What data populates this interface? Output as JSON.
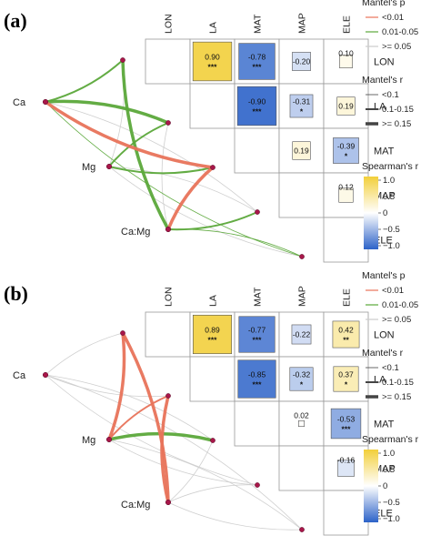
{
  "chart_data": [
    {
      "panel": "(a)",
      "type": "heatmap",
      "variables": [
        "LON",
        "LA",
        "MAT",
        "MAP",
        "ELE"
      ],
      "cells": [
        {
          "row": "LON",
          "col": "LA",
          "r": 0.9,
          "sig": "***"
        },
        {
          "row": "LON",
          "col": "MAT",
          "r": -0.78,
          "sig": "***"
        },
        {
          "row": "LON",
          "col": "MAP",
          "r": -0.2,
          "sig": ""
        },
        {
          "row": "LON",
          "col": "ELE",
          "r": 0.1,
          "sig": ""
        },
        {
          "row": "LA",
          "col": "MAT",
          "r": -0.9,
          "sig": "***"
        },
        {
          "row": "LA",
          "col": "MAP",
          "r": -0.31,
          "sig": "*"
        },
        {
          "row": "LA",
          "col": "ELE",
          "r": 0.19,
          "sig": ""
        },
        {
          "row": "MAT",
          "col": "MAP",
          "r": 0.19,
          "sig": ""
        },
        {
          "row": "MAT",
          "col": "ELE",
          "r": -0.39,
          "sig": "*"
        },
        {
          "row": "MAP",
          "col": "ELE",
          "r": 0.12,
          "sig": ""
        }
      ],
      "nodes": [
        "Ca",
        "Mg",
        "Ca:Mg"
      ],
      "links": [
        {
          "from": "Ca",
          "to": "LON",
          "p": "0.01-0.05",
          "r": "0.1-0.15"
        },
        {
          "from": "Ca",
          "to": "LA",
          "p": "0.01-0.05",
          "r": ">= 0.15"
        },
        {
          "from": "Ca",
          "to": "MAT",
          "p": "<0.01",
          "r": ">= 0.15"
        },
        {
          "from": "Ca",
          "to": "MAP",
          "p": ">= 0.05",
          "r": "<0.1"
        },
        {
          "from": "Ca",
          "to": "ELE",
          "p": "0.01-0.05",
          "r": "<0.1"
        },
        {
          "from": "Mg",
          "to": "LON",
          "p": ">= 0.05",
          "r": "<0.1"
        },
        {
          "from": "Mg",
          "to": "LA",
          "p": "0.01-0.05",
          "r": "0.1-0.15"
        },
        {
          "from": "Mg",
          "to": "MAT",
          "p": "0.01-0.05",
          "r": "0.1-0.15"
        },
        {
          "from": "Mg",
          "to": "MAP",
          "p": ">= 0.05",
          "r": "<0.1"
        },
        {
          "from": "Mg",
          "to": "ELE",
          "p": ">= 0.05",
          "r": "<0.1"
        },
        {
          "from": "Ca:Mg",
          "to": "LON",
          "p": "0.01-0.05",
          "r": ">= 0.15"
        },
        {
          "from": "Ca:Mg",
          "to": "LA",
          "p": ">= 0.05",
          "r": "<0.1"
        },
        {
          "from": "Ca:Mg",
          "to": "MAT",
          "p": "<0.01",
          "r": ">= 0.15"
        },
        {
          "from": "Ca:Mg",
          "to": "MAP",
          "p": "0.01-0.05",
          "r": "0.1-0.15"
        },
        {
          "from": "Ca:Mg",
          "to": "ELE",
          "p": "0.01-0.05",
          "r": "<0.1"
        }
      ]
    },
    {
      "panel": "(b)",
      "type": "heatmap",
      "variables": [
        "LON",
        "LA",
        "MAT",
        "MAP",
        "ELE"
      ],
      "cells": [
        {
          "row": "LON",
          "col": "LA",
          "r": 0.89,
          "sig": "***"
        },
        {
          "row": "LON",
          "col": "MAT",
          "r": -0.77,
          "sig": "***"
        },
        {
          "row": "LON",
          "col": "MAP",
          "r": -0.22,
          "sig": ""
        },
        {
          "row": "LON",
          "col": "ELE",
          "r": 0.42,
          "sig": "**"
        },
        {
          "row": "LA",
          "col": "MAT",
          "r": -0.85,
          "sig": "***"
        },
        {
          "row": "LA",
          "col": "MAP",
          "r": -0.32,
          "sig": "*"
        },
        {
          "row": "LA",
          "col": "ELE",
          "r": 0.37,
          "sig": "*"
        },
        {
          "row": "MAT",
          "col": "MAP",
          "r": 0.02,
          "sig": ""
        },
        {
          "row": "MAT",
          "col": "ELE",
          "r": -0.53,
          "sig": "***"
        },
        {
          "row": "MAP",
          "col": "ELE",
          "r": -0.16,
          "sig": ""
        }
      ],
      "nodes": [
        "Ca",
        "Mg",
        "Ca:Mg"
      ],
      "links": [
        {
          "from": "Ca",
          "to": "LON",
          "p": ">= 0.05",
          "r": "<0.1"
        },
        {
          "from": "Ca",
          "to": "LA",
          "p": ">= 0.05",
          "r": "<0.1"
        },
        {
          "from": "Ca",
          "to": "MAT",
          "p": ">= 0.05",
          "r": "<0.1"
        },
        {
          "from": "Ca",
          "to": "MAP",
          "p": ">= 0.05",
          "r": "<0.1"
        },
        {
          "from": "Ca",
          "to": "ELE",
          "p": ">= 0.05",
          "r": "<0.1"
        },
        {
          "from": "Mg",
          "to": "LON",
          "p": "<0.01",
          "r": ">= 0.15"
        },
        {
          "from": "Mg",
          "to": "LA",
          "p": "<0.01",
          "r": "0.1-0.15"
        },
        {
          "from": "Mg",
          "to": "MAT",
          "p": "0.01-0.05",
          "r": ">= 0.15"
        },
        {
          "from": "Mg",
          "to": "MAP",
          "p": ">= 0.05",
          "r": "<0.1"
        },
        {
          "from": "Mg",
          "to": "ELE",
          "p": ">= 0.05",
          "r": "<0.1"
        },
        {
          "from": "Ca:Mg",
          "to": "LON",
          "p": "<0.01",
          "r": ">= 0.15"
        },
        {
          "from": "Ca:Mg",
          "to": "LA",
          "p": "<0.01",
          "r": ">= 0.15"
        },
        {
          "from": "Ca:Mg",
          "to": "MAT",
          "p": ">= 0.05",
          "r": "<0.1"
        },
        {
          "from": "Ca:Mg",
          "to": "MAP",
          "p": ">= 0.05",
          "r": "<0.1"
        },
        {
          "from": "Ca:Mg",
          "to": "ELE",
          "p": ">= 0.05",
          "r": "<0.1"
        }
      ]
    }
  ],
  "legend": {
    "mantel_p_title": "Mantel's p",
    "mantel_p_items": [
      {
        "label": "<0.01",
        "color": "#E8735A"
      },
      {
        "label": "0.01-0.05",
        "color": "#5BA83A"
      },
      {
        "label": ">= 0.05",
        "color": "#CCCCCC"
      }
    ],
    "mantel_r_title": "Mantel's r",
    "mantel_r_items": [
      {
        "label": "<0.1",
        "width": 0.8
      },
      {
        "label": "0.1-0.15",
        "width": 2
      },
      {
        "label": ">= 0.15",
        "width": 3.5
      }
    ],
    "spearman_title": "Spearman's r",
    "spearman_ticks": [
      "1.0",
      "0.5",
      "0",
      "−0.5",
      "−1.0"
    ],
    "colors": {
      "pos": "#F2CF3A",
      "mid": "#FFFFFF",
      "neg": "#2C62C8"
    }
  }
}
